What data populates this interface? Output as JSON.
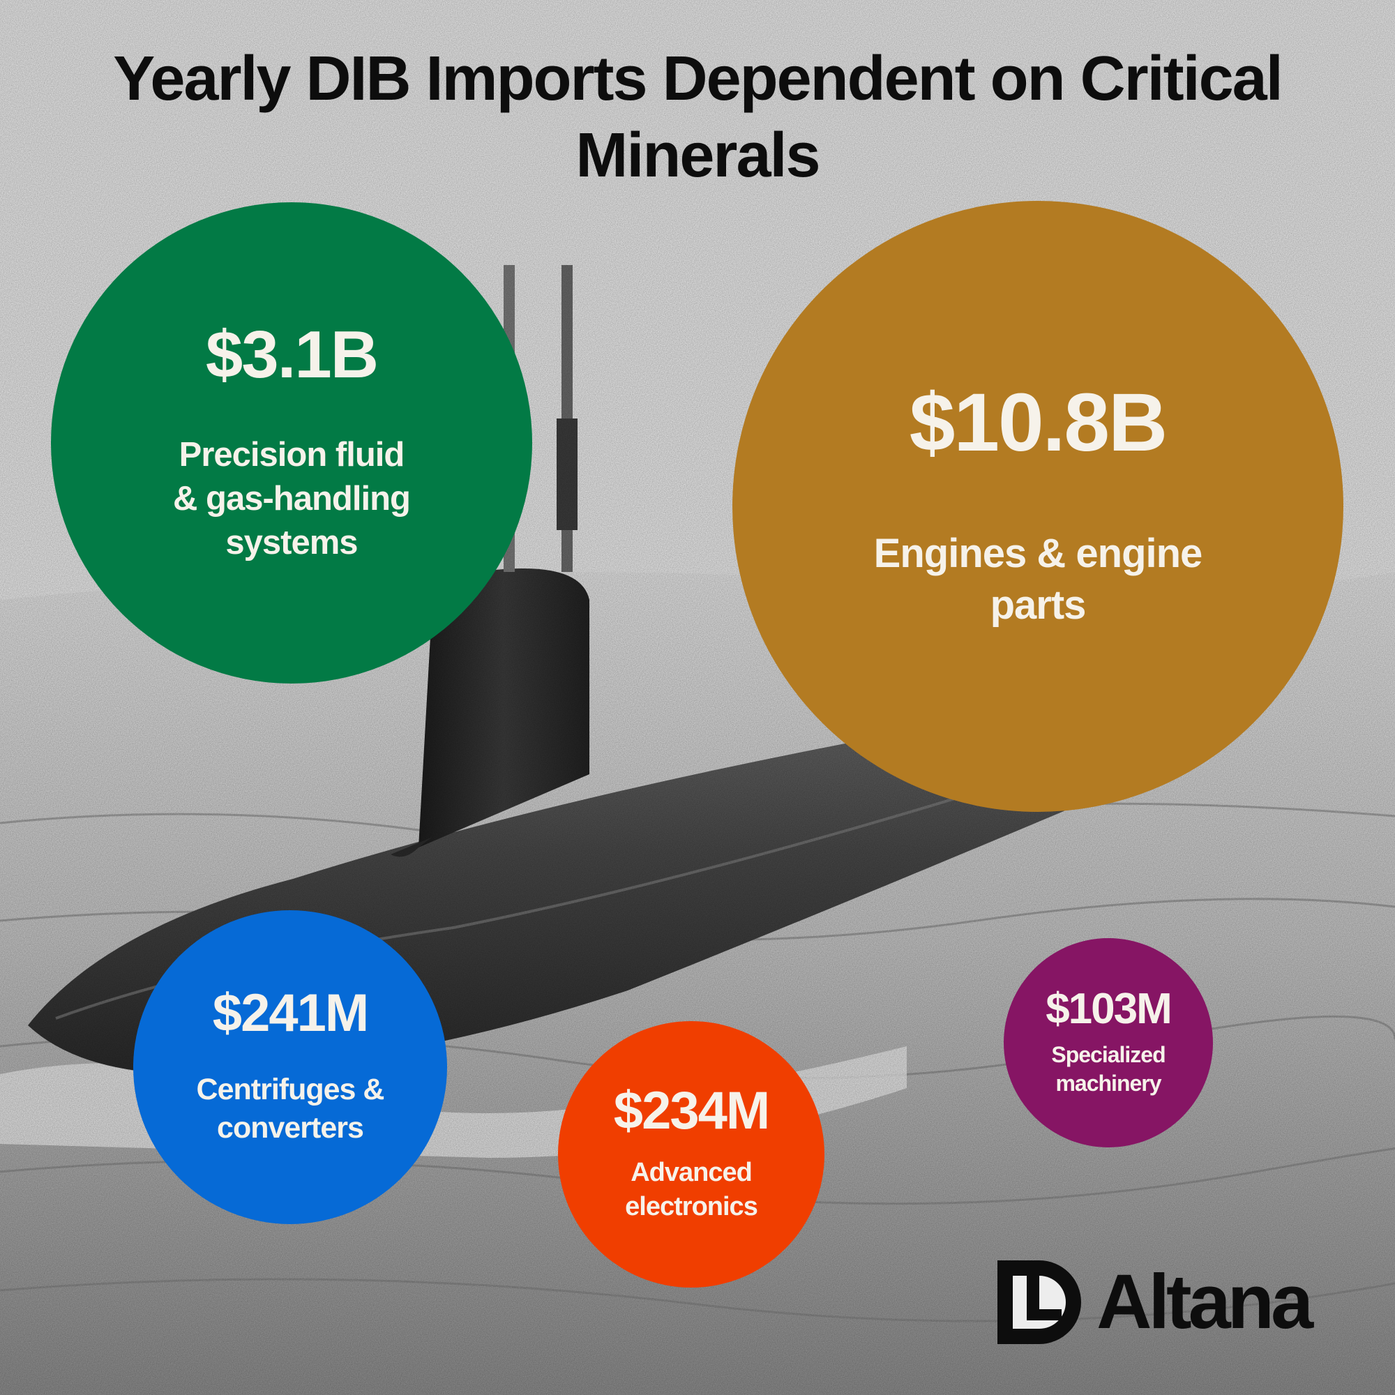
{
  "chart_data": {
    "type": "bubble",
    "title": "Yearly DIB Imports Dependent on Critical Minerals",
    "items": [
      {
        "id": "fluid",
        "value_label": "$3.1B",
        "value": 3100,
        "label": "Precision fluid & gas-handling systems",
        "label_lines": [
          "Precision fluid",
          "& gas-handling",
          "systems"
        ],
        "color": "#027a45"
      },
      {
        "id": "engines",
        "value_label": "$10.8B",
        "value": 10800,
        "label": "Engines & engine parts",
        "label_lines": [
          "Engines & engine",
          "parts"
        ],
        "color": "#b37b22"
      },
      {
        "id": "centrifuges",
        "value_label": "$241M",
        "value": 241,
        "label": "Centrifuges & converters",
        "label_lines": [
          "Centrifuges &",
          "converters"
        ],
        "color": "#066ad6"
      },
      {
        "id": "electronics",
        "value_label": "$234M",
        "value": 234,
        "label": "Advanced electronics",
        "label_lines": [
          "Advanced",
          "electronics"
        ],
        "color": "#f03e00"
      },
      {
        "id": "machinery",
        "value_label": "$103M",
        "value": 103,
        "label": "Specialized machinery",
        "label_lines": [
          "Specialized",
          "machinery"
        ],
        "color": "#861564"
      }
    ]
  },
  "brand": {
    "name": "Altana",
    "icon": "altana-logo-icon"
  }
}
